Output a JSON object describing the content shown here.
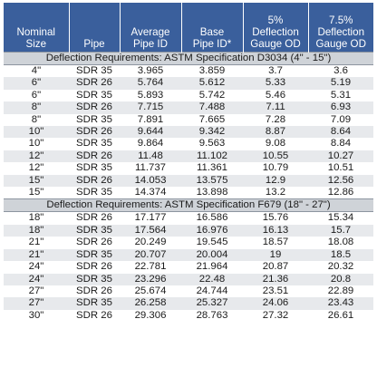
{
  "header": {
    "nominal_size": "Nominal Size",
    "pipe": "Pipe",
    "average_pipe_id": [
      "Average",
      "Pipe ID"
    ],
    "base_pipe_id": [
      "Base",
      "Pipe ID*"
    ],
    "deflection_5": [
      "5% Deflection",
      "Gauge OD"
    ],
    "deflection_7_5": [
      "7.5% Deflection",
      "Gauge OD"
    ]
  },
  "sections": [
    {
      "title": "Deflection Requirements: ASTM Specification D3034 (4\" - 15\")",
      "rows": [
        [
          "4\"",
          "SDR 35",
          "3.965",
          "3.859",
          "3.7",
          "3.6"
        ],
        [
          "6\"",
          "SDR 26",
          "5.764",
          "5.612",
          "5.33",
          "5.19"
        ],
        [
          "6\"",
          "SDR 35",
          "5.893",
          "5.742",
          "5.46",
          "5.31"
        ],
        [
          "8\"",
          "SDR 26",
          "7.715",
          "7.488",
          "7.11",
          "6.93"
        ],
        [
          "8\"",
          "SDR 35",
          "7.891",
          "7.665",
          "7.28",
          "7.09"
        ],
        [
          "10\"",
          "SDR 26",
          "9.644",
          "9.342",
          "8.87",
          "8.64"
        ],
        [
          "10\"",
          "SDR 35",
          "9.864",
          "9.563",
          "9.08",
          "8.84"
        ],
        [
          "12\"",
          "SDR 26",
          "11.48",
          "11.102",
          "10.55",
          "10.27"
        ],
        [
          "12\"",
          "SDR 35",
          "11.737",
          "11.361",
          "10.79",
          "10.51"
        ],
        [
          "15\"",
          "SDR 26",
          "14.053",
          "13.575",
          "12.9",
          "12.56"
        ],
        [
          "15\"",
          "SDR 35",
          "14.374",
          "13.898",
          "13.2",
          "12.86"
        ]
      ]
    },
    {
      "title": "Deflection Requirements: ASTM Specification F679 (18\" - 27\")",
      "rows": [
        [
          "18\"",
          "SDR 26",
          "17.177",
          "16.586",
          "15.76",
          "15.34"
        ],
        [
          "18\"",
          "SDR 35",
          "17.564",
          "16.976",
          "16.13",
          "15.7"
        ],
        [
          "21\"",
          "SDR 26",
          "20.249",
          "19.545",
          "18.57",
          "18.08"
        ],
        [
          "21\"",
          "SDR 35",
          "20.707",
          "20.004",
          "19",
          "18.5"
        ],
        [
          "24\"",
          "SDR 26",
          "22.781",
          "21.964",
          "20.87",
          "20.32"
        ],
        [
          "24\"",
          "SDR 35",
          "23.296",
          "22.48",
          "21.36",
          "20.8"
        ],
        [
          "27\"",
          "SDR 26",
          "25.674",
          "24.744",
          "23.51",
          "22.89"
        ],
        [
          "27\"",
          "SDR 35",
          "26.258",
          "25.327",
          "24.06",
          "23.43"
        ],
        [
          "30\"",
          "SDR 26",
          "29.306",
          "28.763",
          "27.32",
          "26.61"
        ]
      ]
    }
  ]
}
